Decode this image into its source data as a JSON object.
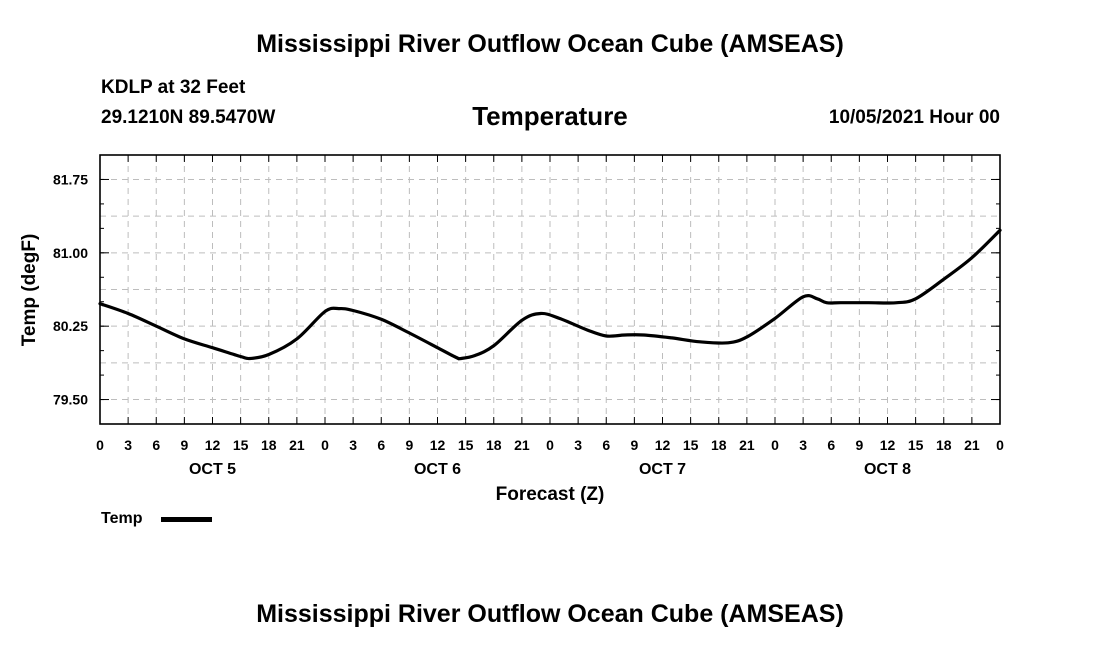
{
  "header": {
    "title": "Mississippi River Outflow Ocean Cube (AMSEAS)",
    "station": "KDLP at 32 Feet",
    "coords": "29.1210N  89.5470W",
    "variable": "Temperature",
    "datetime": "10/05/2021 Hour 00"
  },
  "footer": {
    "title": "Mississippi River Outflow Ocean Cube (AMSEAS)"
  },
  "legend": {
    "label": "Temp",
    "color": "#000000"
  },
  "chart_data": {
    "type": "line",
    "title": "Temperature",
    "xlabel": "Forecast (Z)",
    "ylabel": "Temp (degF)",
    "xlim": [
      0,
      96
    ],
    "ylim": [
      79.25,
      82.0
    ],
    "y_ticks": [
      "79.50",
      "80.25",
      "81.00",
      "81.75"
    ],
    "y_tick_values": [
      79.5,
      80.25,
      81.0,
      81.75
    ],
    "x_ticks": [
      "0",
      "3",
      "6",
      "9",
      "12",
      "15",
      "18",
      "21",
      "0",
      "3",
      "6",
      "9",
      "12",
      "15",
      "18",
      "21",
      "0",
      "3",
      "6",
      "9",
      "12",
      "15",
      "18",
      "21",
      "0",
      "3",
      "6",
      "9",
      "12",
      "15",
      "18",
      "21",
      "0"
    ],
    "day_labels": [
      "OCT 5",
      "OCT 6",
      "OCT 7",
      "OCT 8"
    ],
    "day_label_hours": [
      12,
      36,
      60,
      84
    ],
    "grid": true,
    "series": [
      {
        "name": "Temp",
        "color": "#000000",
        "x": [
          0,
          3,
          6,
          9,
          12,
          15,
          16,
          18,
          21,
          24,
          25.5,
          27,
          30,
          33,
          36,
          38,
          38.5,
          40,
          42,
          45,
          47,
          49,
          52,
          54,
          56,
          58,
          61,
          64,
          67,
          69,
          72,
          75,
          76.5,
          77.5,
          79,
          82,
          85,
          87,
          90,
          93,
          96
        ],
        "values": [
          80.48,
          80.38,
          80.25,
          80.12,
          80.03,
          79.94,
          79.92,
          79.96,
          80.12,
          80.4,
          80.43,
          80.41,
          80.32,
          80.18,
          80.03,
          79.93,
          79.92,
          79.95,
          80.05,
          80.31,
          80.38,
          80.33,
          80.21,
          80.15,
          80.16,
          80.16,
          80.13,
          80.09,
          80.08,
          80.14,
          80.33,
          80.55,
          80.53,
          80.49,
          80.49,
          80.49,
          80.49,
          80.53,
          80.73,
          80.95,
          81.23
        ]
      }
    ]
  }
}
